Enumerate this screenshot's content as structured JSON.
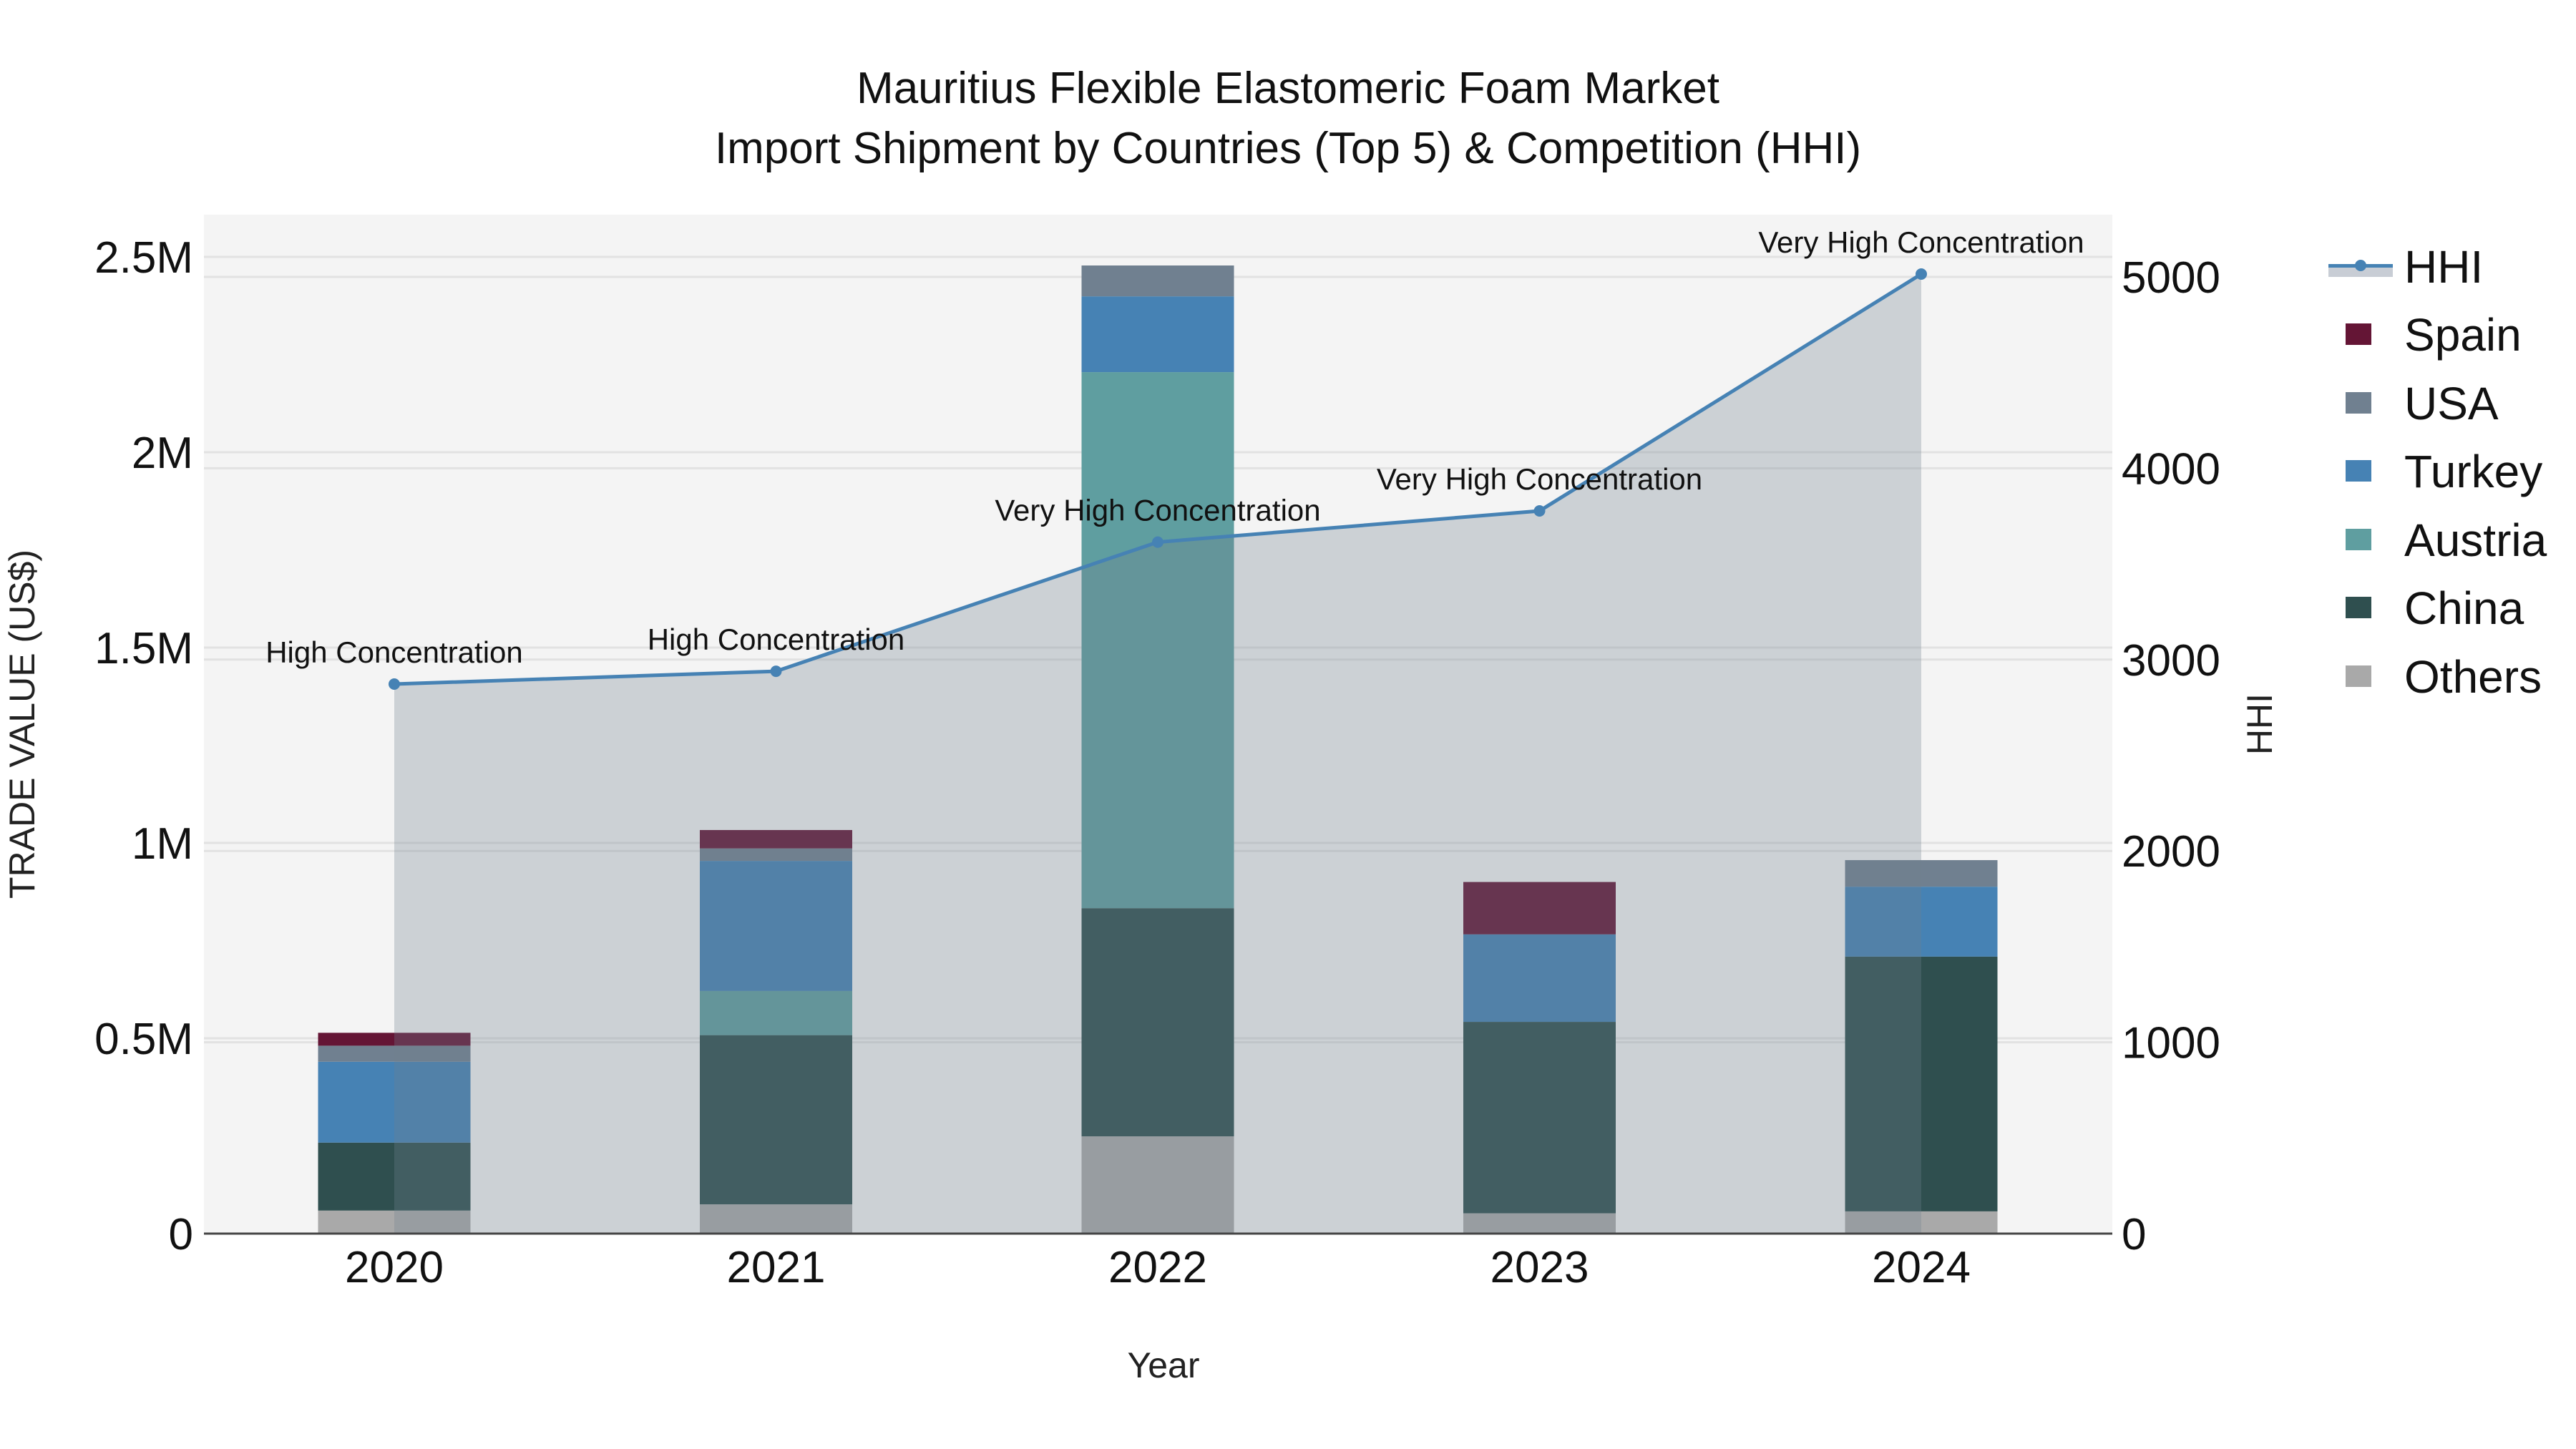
{
  "title": {
    "line1": "Mauritius Flexible Elastomeric Foam Market",
    "line2": "Import Shipment by Countries (Top 5) & Competition (HHI)"
  },
  "axes": {
    "x_title": "Year",
    "y_left_title": "TRADE VALUE (US$)",
    "y_right_title": "HHI",
    "y_left_ticks": [
      "0",
      "0.5M",
      "1M",
      "1.5M",
      "2M",
      "2.5M"
    ],
    "y_right_ticks": [
      "0",
      "1000",
      "2000",
      "3000",
      "4000",
      "5000"
    ]
  },
  "legend": [
    {
      "name": "HHI",
      "type": "line",
      "color": "#4682B4"
    },
    {
      "name": "Spain",
      "type": "bar",
      "color": "#641535"
    },
    {
      "name": "USA",
      "type": "bar",
      "color": "#708090"
    },
    {
      "name": "Turkey",
      "type": "bar",
      "color": "#4682B4"
    },
    {
      "name": "Austria",
      "type": "bar",
      "color": "#5F9EA0"
    },
    {
      "name": "China",
      "type": "bar",
      "color": "#2F4F4F"
    },
    {
      "name": "Others",
      "type": "bar",
      "color": "#A9A9A9"
    }
  ],
  "chart_data": {
    "type": "bar",
    "stacked": true,
    "title": "Mauritius Flexible Elastomeric Foam Market — Import Shipment by Countries (Top 5) & Competition (HHI)",
    "xlabel": "Year",
    "ylabel": "TRADE VALUE (US$)",
    "y2label": "HHI",
    "categories": [
      "2020",
      "2021",
      "2022",
      "2023",
      "2024"
    ],
    "ylim": [
      0,
      2600000
    ],
    "y2lim": [
      0,
      5300
    ],
    "grid": true,
    "legend_position": "right",
    "series": [
      {
        "name": "Others",
        "color": "#A9A9A9",
        "values": [
          59000,
          75000,
          249000,
          52000,
          57000
        ]
      },
      {
        "name": "China",
        "color": "#2F4F4F",
        "values": [
          174000,
          433000,
          584000,
          490000,
          652000
        ]
      },
      {
        "name": "Austria",
        "color": "#5F9EA0",
        "values": [
          0,
          113000,
          1372000,
          0,
          0
        ]
      },
      {
        "name": "Turkey",
        "color": "#4682B4",
        "values": [
          207000,
          333000,
          194000,
          224000,
          179000
        ]
      },
      {
        "name": "USA",
        "color": "#708090",
        "values": [
          41000,
          32000,
          79000,
          0,
          68000
        ]
      },
      {
        "name": "Spain",
        "color": "#641535",
        "values": [
          33000,
          47000,
          0,
          134000,
          0
        ]
      }
    ],
    "line_series": {
      "name": "HHI",
      "axis": "right",
      "color": "#4682B4",
      "fill": "tozeroy",
      "values": [
        2872,
        2939,
        3614,
        3777,
        5015
      ],
      "annotations": [
        "High Concentration",
        "High Concentration",
        "Very High Concentration",
        "Very High Concentration",
        "Very High Concentration"
      ]
    }
  }
}
